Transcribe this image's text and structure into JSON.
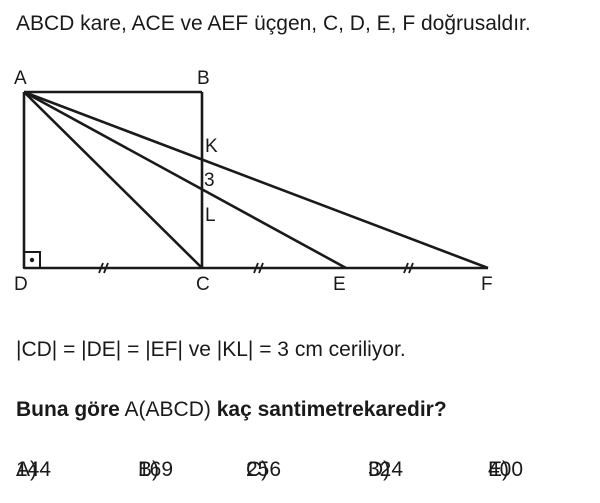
{
  "intro": "ABCD kare, ACE ve AEF üçgen, C, D, E, F doğrusaldır.",
  "figure": {
    "labels": {
      "A": "A",
      "B": "B",
      "C": "C",
      "D": "D",
      "E": "E",
      "F": "F",
      "K": "K",
      "L": "L",
      "kl": "3"
    },
    "tick_mark": "//"
  },
  "given": "|CD| = |DE| = |EF| ve |KL| = 3 cm ceriliyor.",
  "question": {
    "prefix": "Buna göre",
    "middle": "A(ABCD)",
    "suffix": "kaç santimetrekaredir?"
  },
  "choices": [
    {
      "letter": "A)",
      "value": "144"
    },
    {
      "letter": "B)",
      "value": "169"
    },
    {
      "letter": "C)",
      "value": "256"
    },
    {
      "letter": "D)",
      "value": "324"
    },
    {
      "letter": "E)",
      "value": "400"
    }
  ]
}
